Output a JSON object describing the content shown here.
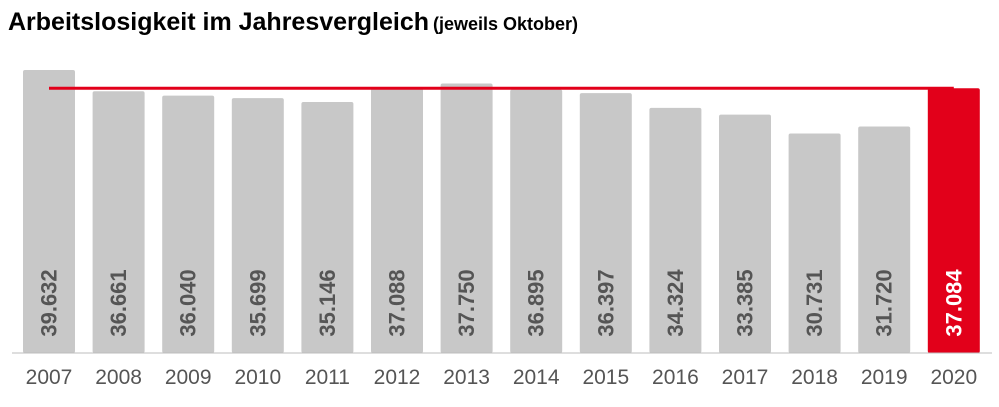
{
  "header": {
    "title": "Arbeitslosigkeit im Jahresvergleich",
    "subtitle": "(jeweils Oktober)"
  },
  "colors": {
    "bar": "#c8c8c8",
    "highlight": "#e2001a",
    "value_text": "#555555",
    "value_text_highlight": "#ffffff",
    "tick_text": "#555555",
    "reference_line": "#e2001a"
  },
  "chart_data": {
    "type": "bar",
    "title": "Arbeitslosigkeit im Jahresvergleich",
    "subtitle": "(jeweils Oktober)",
    "xlabel": "",
    "ylabel": "",
    "categories": [
      "2007",
      "2008",
      "2009",
      "2010",
      "2011",
      "2012",
      "2013",
      "2014",
      "2015",
      "2016",
      "2017",
      "2018",
      "2019",
      "2020"
    ],
    "values": [
      39632,
      36661,
      36040,
      35699,
      35146,
      37088,
      37750,
      36895,
      36397,
      34324,
      33385,
      30731,
      31720,
      37084
    ],
    "value_labels": [
      "39.632",
      "36.661",
      "36.040",
      "35.699",
      "35.146",
      "37.088",
      "37.750",
      "36.895",
      "36.397",
      "34.324",
      "33.385",
      "30.731",
      "31.720",
      "37.084"
    ],
    "highlight_category": "2020",
    "reference_line": {
      "value": 37084
    },
    "ylim": [
      0,
      41000
    ],
    "grid": false,
    "legend": "none"
  }
}
